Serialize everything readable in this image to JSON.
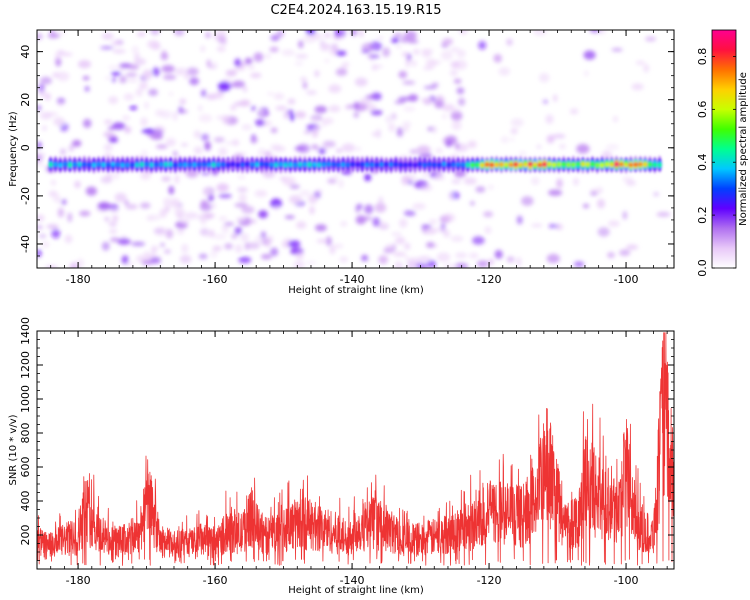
{
  "title": "C2E4.2024.163.15.19.R15",
  "chart_data": [
    {
      "type": "heatmap",
      "xlabel": "Height of straight line (km)",
      "ylabel": "Frequency (Hz)",
      "xlim": [
        -186,
        -93
      ],
      "ylim": [
        -50,
        49
      ],
      "xticks": [
        -180,
        -160,
        -140,
        -120,
        -100
      ],
      "xtick_labels": [
        "-180",
        "-160",
        "-140",
        "-120",
        "-100"
      ],
      "yticks": [
        -40,
        -20,
        0,
        20,
        40
      ],
      "ytick_labels": [
        "-40",
        "-20",
        "0",
        "20",
        "40"
      ],
      "band_center_hz": -7,
      "band": [
        {
          "x": -183,
          "v": 0.4
        },
        {
          "x": -178,
          "v": 0.36
        },
        {
          "x": -174,
          "v": 0.32
        },
        {
          "x": -170,
          "v": 0.38
        },
        {
          "x": -165,
          "v": 0.34
        },
        {
          "x": -161,
          "v": 0.38
        },
        {
          "x": -157,
          "v": 0.3
        },
        {
          "x": -152,
          "v": 0.36
        },
        {
          "x": -148,
          "v": 0.4
        },
        {
          "x": -144,
          "v": 0.34
        },
        {
          "x": -140,
          "v": 0.3
        },
        {
          "x": -136,
          "v": 0.32
        },
        {
          "x": -132,
          "v": 0.28
        },
        {
          "x": -128,
          "v": 0.3
        },
        {
          "x": -124,
          "v": 0.34
        },
        {
          "x": -120,
          "v": 0.7
        },
        {
          "x": -116,
          "v": 0.72
        },
        {
          "x": -112,
          "v": 0.78
        },
        {
          "x": -108,
          "v": 0.55
        },
        {
          "x": -104,
          "v": 0.62
        },
        {
          "x": -101,
          "v": 0.8
        },
        {
          "x": -97,
          "v": 0.6
        },
        {
          "x": -95,
          "v": 0.45
        }
      ],
      "colorbar": {
        "label": "Normalized spectral amplitude",
        "range": [
          0.0,
          0.9
        ],
        "ticks": [
          0.0,
          0.2,
          0.4,
          0.6,
          0.8
        ],
        "tick_labels": [
          "0.0",
          "0.2",
          "0.4",
          "0.6",
          "0.8"
        ],
        "colors": [
          "#ffffff",
          "#e8c8f8",
          "#b070f0",
          "#6000ff",
          "#0040ff",
          "#00c8ff",
          "#00ff90",
          "#40ff00",
          "#c8ff00",
          "#ffd000",
          "#ff7000",
          "#ff1040",
          "#ff0090"
        ]
      }
    },
    {
      "type": "line",
      "xlabel": "Height of straight line (km)",
      "ylabel": "SNR (10 * v/v)",
      "xlim": [
        -186,
        -93
      ],
      "ylim": [
        0,
        1400
      ],
      "xticks": [
        -180,
        -160,
        -140,
        -120,
        -100
      ],
      "xtick_labels": [
        "-180",
        "-160",
        "-140",
        "-120",
        "-100"
      ],
      "yticks": [
        200,
        400,
        600,
        800,
        1000,
        1200,
        1400
      ],
      "ytick_labels": [
        "200",
        "400",
        "600",
        "800",
        "1000",
        "1200",
        "1400"
      ],
      "series": [
        {
          "color": "#ee3333",
          "x": [
            -186,
            -184,
            -182,
            -180,
            -179,
            -177,
            -175,
            -173,
            -171,
            -170,
            -168,
            -166,
            -164,
            -162,
            -160,
            -158,
            -156,
            -155,
            -153,
            -151,
            -149,
            -147,
            -145,
            -143,
            -141,
            -139,
            -137,
            -135,
            -133,
            -131,
            -129,
            -127,
            -125,
            -123,
            -121,
            -119,
            -117,
            -115,
            -113,
            -111.5,
            -110,
            -109,
            -107,
            -106,
            -104,
            -102,
            -101,
            -100,
            -99,
            -98,
            -97,
            -96,
            -95,
            -94.5,
            -93.5
          ],
          "y": [
            180,
            160,
            200,
            220,
            420,
            250,
            180,
            200,
            250,
            520,
            190,
            170,
            180,
            200,
            170,
            280,
            240,
            380,
            220,
            260,
            300,
            320,
            290,
            260,
            220,
            280,
            320,
            280,
            220,
            200,
            210,
            230,
            260,
            300,
            360,
            400,
            380,
            360,
            500,
            720,
            480,
            300,
            350,
            600,
            500,
            450,
            400,
            720,
            420,
            300,
            250,
            240,
            800,
            1200,
            700
          ]
        }
      ]
    }
  ]
}
